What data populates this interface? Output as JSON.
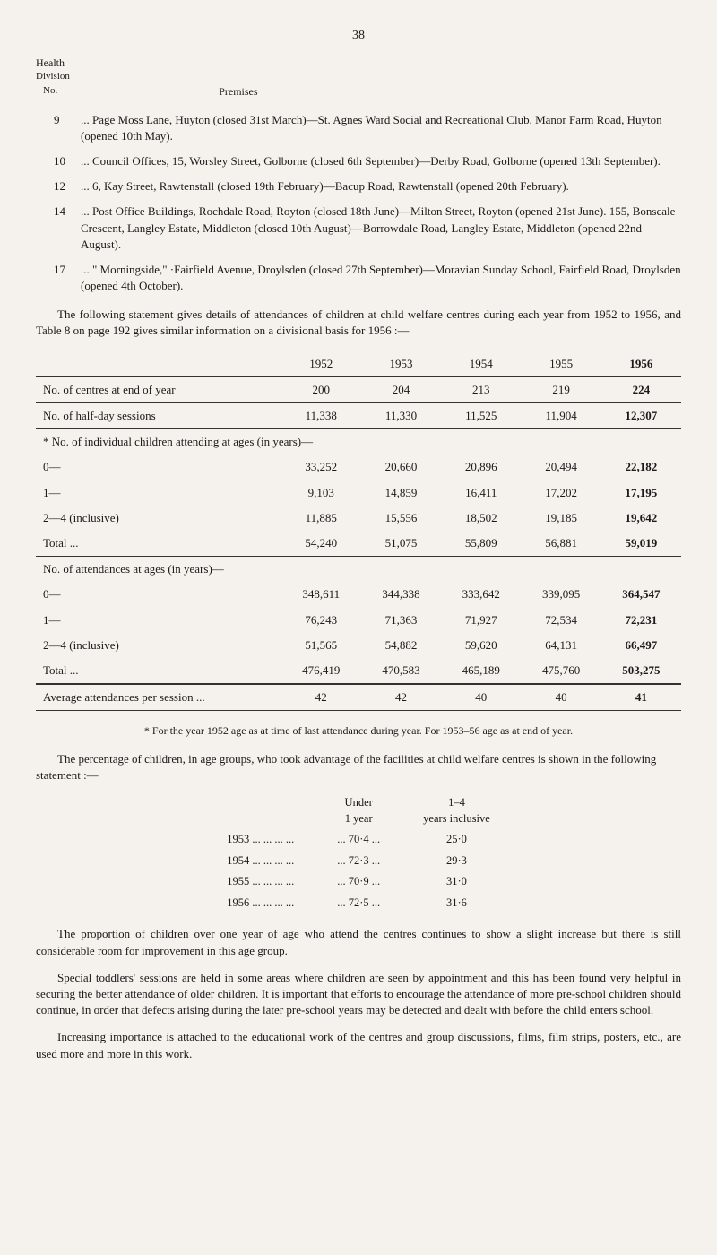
{
  "pageNumber": "38",
  "header": {
    "health": "Health",
    "division": "Division",
    "no": "No.",
    "premises": "Premises"
  },
  "premises": [
    {
      "num": "9",
      "text": "... Page Moss Lane, Huyton (closed 31st March)—St. Agnes Ward Social and Recreational Club, Manor Farm Road, Huyton (opened 10th May)."
    },
    {
      "num": "10",
      "text": "... Council Offices, 15, Worsley Street, Golborne (closed 6th September)—Derby Road, Golborne (opened 13th September)."
    },
    {
      "num": "12",
      "text": "... 6, Kay Street, Rawtenstall (closed 19th February)—Bacup Road, Rawtenstall (opened 20th February)."
    },
    {
      "num": "14",
      "text": "... Post Office Buildings, Rochdale Road, Royton (closed 18th June)—Milton Street, Royton (opened 21st June). 155, Bonscale Crescent, Langley Estate, Middleton (closed 10th August)—Borrowdale Road, Langley Estate, Middleton (opened 22nd August)."
    },
    {
      "num": "17",
      "text": "... \" Morningside,\" ·Fairfield Avenue, Droylsden (closed 27th September)—Moravian Sunday School, Fairfield Road, Droylsden (opened 4th October)."
    }
  ],
  "introPara": "The following statement gives details of attendances of children at child welfare centres during each year from 1952 to 1956, and Table 8 on page 192 gives similar information on a divisional basis for 1956 :—",
  "table": {
    "years": [
      "1952",
      "1953",
      "1954",
      "1955",
      "1956"
    ],
    "rows": [
      {
        "label": "No. of centres at end of year",
        "values": [
          "200",
          "204",
          "213",
          "219",
          "224"
        ]
      },
      {
        "label": "No. of half-day sessions",
        "values": [
          "11,338",
          "11,330",
          "11,525",
          "11,904",
          "12,307"
        ]
      }
    ],
    "sectionA": {
      "header": "* No. of individual children attending at ages (in years)—",
      "rows": [
        {
          "label": "0—",
          "values": [
            "33,252",
            "20,660",
            "20,896",
            "20,494",
            "22,182"
          ]
        },
        {
          "label": "1—",
          "values": [
            "9,103",
            "14,859",
            "16,411",
            "17,202",
            "17,195"
          ]
        },
        {
          "label": "2—4 (inclusive)",
          "values": [
            "11,885",
            "15,556",
            "18,502",
            "19,185",
            "19,642"
          ]
        }
      ],
      "total": {
        "label": "Total ...",
        "values": [
          "54,240",
          "51,075",
          "55,809",
          "56,881",
          "59,019"
        ]
      }
    },
    "sectionB": {
      "header": "No. of attendances at ages (in years)—",
      "rows": [
        {
          "label": "0—",
          "values": [
            "348,611",
            "344,338",
            "333,642",
            "339,095",
            "364,547"
          ]
        },
        {
          "label": "1—",
          "values": [
            "76,243",
            "71,363",
            "71,927",
            "72,534",
            "72,231"
          ]
        },
        {
          "label": "2—4 (inclusive)",
          "values": [
            "51,565",
            "54,882",
            "59,620",
            "64,131",
            "66,497"
          ]
        }
      ],
      "total": {
        "label": "Total ...",
        "values": [
          "476,419",
          "470,583",
          "465,189",
          "475,760",
          "503,275"
        ]
      }
    },
    "avg": {
      "label": "Average attendances per session ...",
      "values": [
        "42",
        "42",
        "40",
        "40",
        "41"
      ]
    }
  },
  "footnote": "* For the year 1952 age as at time of last attendance during year.  For 1953–56 age as at end of year.",
  "pctPara": "The percentage of children, in age groups, who took advantage of the facilities at child welfare centres is shown in the following statement :—",
  "pctTable": {
    "headers": [
      "",
      "Under 1 year",
      "1–4 years inclusive"
    ],
    "rows": [
      {
        "year": "1953",
        "u1": "70·4",
        "y14": "25·0"
      },
      {
        "year": "1954",
        "u1": "72·3",
        "y14": "29·3"
      },
      {
        "year": "1955",
        "u1": "70·9",
        "y14": "31·0"
      },
      {
        "year": "1956",
        "u1": "72·5",
        "y14": "31·6"
      }
    ]
  },
  "closing": [
    "The proportion of children over one year of age who attend the centres continues to show a slight increase but there is still considerable room for improvement in this age group.",
    "Special toddlers' sessions are held in some areas where children are seen by appointment and this has been found very helpful in securing the better attendance of older children. It is important that efforts to encourage the attendance of more pre-school children should continue, in order that defects arising during the later pre-school years may be detected and dealt with before the child enters school.",
    "Increasing importance is attached to the educational work of the centres and group discussions, films, film strips, posters, etc., are used more and more in this work."
  ]
}
